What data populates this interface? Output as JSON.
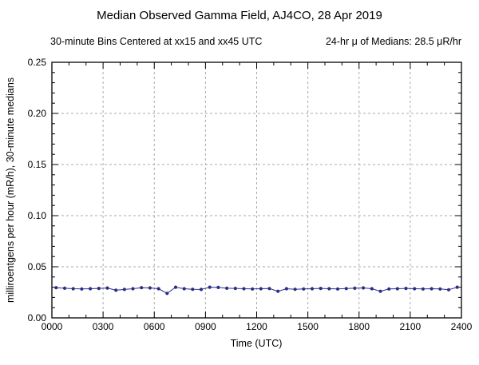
{
  "chart": {
    "title": "Median Observed Gamma Field, AJ4CO, 28 Apr 2019",
    "subtitle_left": "30-minute Bins Centered at xx15 and xx45 UTC",
    "subtitle_right": "24-hr μ of Medians: 28.5 μR/hr",
    "xlabel": "Time (UTC)",
    "ylabel": "milliroentgens per hour (mR/h), 30-minute medians"
  },
  "chart_data": {
    "type": "line",
    "marker": "circle",
    "line_color": "#2d2d86",
    "grid": "dashed",
    "xlim": [
      0,
      24
    ],
    "ylim": [
      0,
      0.25
    ],
    "x_ticks": [
      0,
      3,
      6,
      9,
      12,
      15,
      18,
      21,
      24
    ],
    "x_tick_labels": [
      "0000",
      "0300",
      "0600",
      "0900",
      "1200",
      "1500",
      "1800",
      "2100",
      "2400"
    ],
    "y_ticks": [
      0.0,
      0.05,
      0.1,
      0.15,
      0.2,
      0.25
    ],
    "y_tick_labels": [
      "0.00",
      "0.05",
      "0.10",
      "0.15",
      "0.20",
      "0.25"
    ],
    "x_hours": [
      0.25,
      0.75,
      1.25,
      1.75,
      2.25,
      2.75,
      3.25,
      3.75,
      4.25,
      4.75,
      5.25,
      5.75,
      6.25,
      6.75,
      7.25,
      7.75,
      8.25,
      8.75,
      9.25,
      9.75,
      10.25,
      10.75,
      11.25,
      11.75,
      12.25,
      12.75,
      13.25,
      13.75,
      14.25,
      14.75,
      15.25,
      15.75,
      16.25,
      16.75,
      17.25,
      17.75,
      18.25,
      18.75,
      19.25,
      19.75,
      20.25,
      20.75,
      21.25,
      21.75,
      22.25,
      22.75,
      23.25,
      23.75
    ],
    "values": [
      0.0295,
      0.029,
      0.0285,
      0.0283,
      0.0285,
      0.0288,
      0.0292,
      0.027,
      0.0278,
      0.0285,
      0.0295,
      0.0293,
      0.0285,
      0.024,
      0.03,
      0.0285,
      0.028,
      0.0278,
      0.03,
      0.0298,
      0.029,
      0.0288,
      0.0285,
      0.0283,
      0.0285,
      0.0287,
      0.026,
      0.0285,
      0.028,
      0.0283,
      0.0285,
      0.0288,
      0.0285,
      0.0283,
      0.0287,
      0.029,
      0.0293,
      0.0285,
      0.026,
      0.0283,
      0.0285,
      0.0288,
      0.0285,
      0.0283,
      0.0285,
      0.0283,
      0.0275,
      0.03
    ],
    "mean_label_value": "28.5"
  }
}
